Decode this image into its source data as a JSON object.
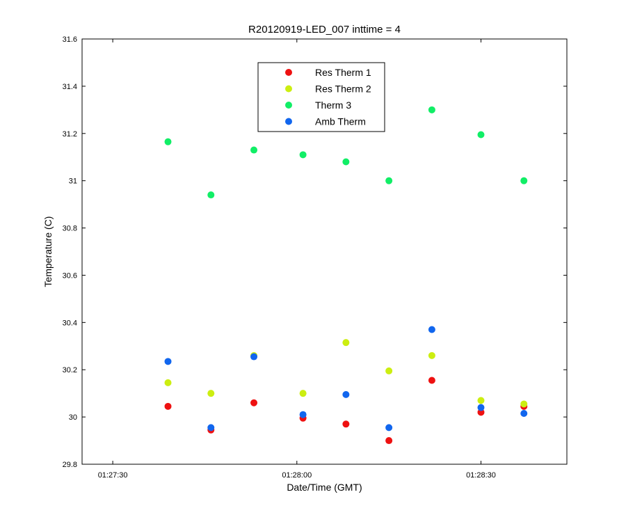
{
  "chart_data": {
    "type": "scatter",
    "title": "R20120919-LED_007 inttime = 4",
    "xlabel": "Date/Time (GMT)",
    "ylabel": "Temperature (C)",
    "xlim": [
      "01:27:25",
      "01:28:44"
    ],
    "ylim": [
      29.8,
      31.6
    ],
    "x_ticks": [
      "01:27:30",
      "01:28:00",
      "01:28:30"
    ],
    "y_ticks": [
      "29.8",
      "30",
      "30.2",
      "30.4",
      "30.6",
      "30.8",
      "31",
      "31.2",
      "31.4",
      "31.6"
    ],
    "x": [
      "01:27:39",
      "01:27:46",
      "01:27:53",
      "01:28:01",
      "01:28:08",
      "01:28:15",
      "01:28:22",
      "01:28:30",
      "01:28:37"
    ],
    "legend_position": "top-center",
    "grid": false,
    "series": [
      {
        "name": "Res Therm 1",
        "color": "#ee1111",
        "values": [
          30.045,
          29.945,
          30.06,
          29.995,
          29.97,
          29.9,
          30.155,
          30.02,
          30.045
        ]
      },
      {
        "name": "Res Therm 2",
        "color": "#ccee11",
        "values": [
          30.145,
          30.1,
          30.26,
          30.1,
          30.315,
          30.195,
          30.26,
          30.07,
          30.055
        ]
      },
      {
        "name": "Therm 3",
        "color": "#11ee66",
        "values": [
          31.165,
          30.94,
          31.13,
          31.11,
          31.08,
          31.0,
          31.3,
          31.195,
          31.0
        ]
      },
      {
        "name": "Amb Therm",
        "color": "#1166ee",
        "values": [
          30.235,
          29.955,
          30.255,
          30.01,
          30.095,
          29.955,
          30.37,
          30.04,
          30.015
        ]
      }
    ]
  }
}
